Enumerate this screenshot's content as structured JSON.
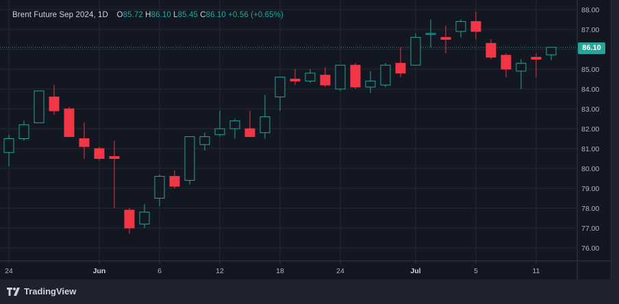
{
  "legend": {
    "symbol": "Brent Future Sep 2024, 1D",
    "o_label": "O",
    "o_value": "85.72",
    "h_label": "H",
    "h_value": "86.10",
    "l_label": "L",
    "l_value": "85.45",
    "c_label": "C",
    "c_value": "86.10",
    "change": "+0.56 (+0.65%)"
  },
  "last_price_label": "86.10",
  "brand": {
    "name": "TradingView",
    "icon": "tradingview-logo-icon"
  },
  "colors": {
    "up": "#26a69a",
    "down": "#f23645",
    "background": "#131722",
    "grid": "#242833",
    "price_line": "#26a69a"
  },
  "chart_data": {
    "type": "candlestick",
    "title": "Brent Future Sep 2024, 1D",
    "ylim": [
      75.0,
      88.0
    ],
    "last_price": 86.1,
    "y_ticks": [
      "76.00",
      "77.00",
      "78.00",
      "79.00",
      "80.00",
      "81.00",
      "82.00",
      "83.00",
      "84.00",
      "85.00",
      "86.00",
      "87.00",
      "88.00"
    ],
    "x_ticks": [
      {
        "label": "24",
        "index": 0,
        "bold": false
      },
      {
        "label": "Jun",
        "index": 6,
        "bold": true
      },
      {
        "label": "6",
        "index": 10,
        "bold": false
      },
      {
        "label": "12",
        "index": 14,
        "bold": false
      },
      {
        "label": "18",
        "index": 18,
        "bold": false
      },
      {
        "label": "24",
        "index": 22,
        "bold": false
      },
      {
        "label": "Jul",
        "index": 27,
        "bold": true
      },
      {
        "label": "5",
        "index": 31,
        "bold": false
      },
      {
        "label": "11",
        "index": 35,
        "bold": false
      }
    ],
    "grid": true,
    "candles": [
      {
        "o": 80.8,
        "h": 81.7,
        "l": 80.1,
        "c": 81.5
      },
      {
        "o": 81.5,
        "h": 82.4,
        "l": 81.4,
        "c": 82.2
      },
      {
        "o": 82.3,
        "h": 83.9,
        "l": 82.3,
        "c": 83.9
      },
      {
        "o": 83.6,
        "h": 84.2,
        "l": 82.7,
        "c": 82.9
      },
      {
        "o": 83.0,
        "h": 83.1,
        "l": 81.6,
        "c": 81.6
      },
      {
        "o": 81.5,
        "h": 82.3,
        "l": 80.5,
        "c": 81.1
      },
      {
        "o": 81.0,
        "h": 81.1,
        "l": 80.4,
        "c": 80.5
      },
      {
        "o": 80.6,
        "h": 81.4,
        "l": 78.0,
        "c": 80.5
      },
      {
        "o": 77.9,
        "h": 78.0,
        "l": 76.7,
        "c": 77.0
      },
      {
        "o": 77.2,
        "h": 78.2,
        "l": 77.0,
        "c": 77.8
      },
      {
        "o": 78.5,
        "h": 79.7,
        "l": 78.1,
        "c": 79.6
      },
      {
        "o": 79.6,
        "h": 79.9,
        "l": 79.0,
        "c": 79.1
      },
      {
        "o": 79.4,
        "h": 81.6,
        "l": 79.2,
        "c": 81.6
      },
      {
        "o": 81.2,
        "h": 81.8,
        "l": 80.9,
        "c": 81.6
      },
      {
        "o": 81.7,
        "h": 82.9,
        "l": 81.6,
        "c": 82.0
      },
      {
        "o": 82.0,
        "h": 82.5,
        "l": 81.5,
        "c": 82.4
      },
      {
        "o": 82.0,
        "h": 82.9,
        "l": 81.6,
        "c": 81.6
      },
      {
        "o": 81.8,
        "h": 83.7,
        "l": 81.5,
        "c": 82.6
      },
      {
        "o": 83.6,
        "h": 84.6,
        "l": 82.9,
        "c": 84.6
      },
      {
        "o": 84.5,
        "h": 85.0,
        "l": 84.2,
        "c": 84.4
      },
      {
        "o": 84.4,
        "h": 85.0,
        "l": 84.3,
        "c": 84.8
      },
      {
        "o": 84.7,
        "h": 85.1,
        "l": 84.1,
        "c": 84.2
      },
      {
        "o": 84.0,
        "h": 85.2,
        "l": 83.9,
        "c": 85.2
      },
      {
        "o": 85.2,
        "h": 85.3,
        "l": 84.0,
        "c": 84.1
      },
      {
        "o": 84.1,
        "h": 84.9,
        "l": 83.8,
        "c": 84.4
      },
      {
        "o": 84.2,
        "h": 85.3,
        "l": 84.1,
        "c": 85.2
      },
      {
        "o": 85.3,
        "h": 86.1,
        "l": 84.6,
        "c": 84.8
      },
      {
        "o": 85.2,
        "h": 86.8,
        "l": 85.2,
        "c": 86.6
      },
      {
        "o": 86.8,
        "h": 87.5,
        "l": 86.1,
        "c": 86.8
      },
      {
        "o": 86.6,
        "h": 87.2,
        "l": 85.8,
        "c": 86.5
      },
      {
        "o": 86.9,
        "h": 87.5,
        "l": 86.6,
        "c": 87.4
      },
      {
        "o": 87.4,
        "h": 87.9,
        "l": 86.5,
        "c": 86.9
      },
      {
        "o": 86.3,
        "h": 86.5,
        "l": 85.5,
        "c": 85.6
      },
      {
        "o": 85.7,
        "h": 85.8,
        "l": 84.6,
        "c": 85.0
      },
      {
        "o": 84.9,
        "h": 85.5,
        "l": 84.0,
        "c": 85.3
      },
      {
        "o": 85.6,
        "h": 85.8,
        "l": 84.6,
        "c": 85.5
      },
      {
        "o": 85.72,
        "h": 86.1,
        "l": 85.45,
        "c": 86.1
      }
    ]
  }
}
